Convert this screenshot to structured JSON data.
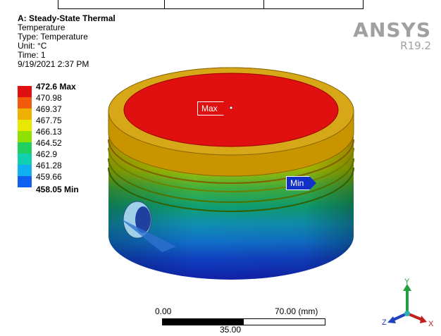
{
  "header": {
    "title": "A: Steady-State Thermal",
    "lines": [
      "Temperature",
      "Type: Temperature",
      "Unit: °C",
      "Time: 1",
      "9/19/2021 2:37 PM"
    ]
  },
  "logo": {
    "brand": "ANSYS",
    "version": "R19.2"
  },
  "legend": {
    "entries": [
      {
        "label": "472.6 Max",
        "color": "#e01010"
      },
      {
        "label": "470.98",
        "color": "#f05a0a"
      },
      {
        "label": "469.37",
        "color": "#f0b000"
      },
      {
        "label": "467.75",
        "color": "#e8e800"
      },
      {
        "label": "466.13",
        "color": "#90e000"
      },
      {
        "label": "464.52",
        "color": "#20d060"
      },
      {
        "label": "462.9",
        "color": "#10d0b0"
      },
      {
        "label": "461.28",
        "color": "#10b0f0"
      },
      {
        "label": "459.66",
        "color": "#1060f0"
      }
    ],
    "min_label": "458.05 Min"
  },
  "probes": {
    "max": "Max",
    "min": "Min"
  },
  "scale_bar": {
    "left": "0.00",
    "right": "70.00 (mm)",
    "mid": "35.00"
  },
  "triad": {
    "x": "X",
    "y": "Y",
    "z": "Z"
  }
}
